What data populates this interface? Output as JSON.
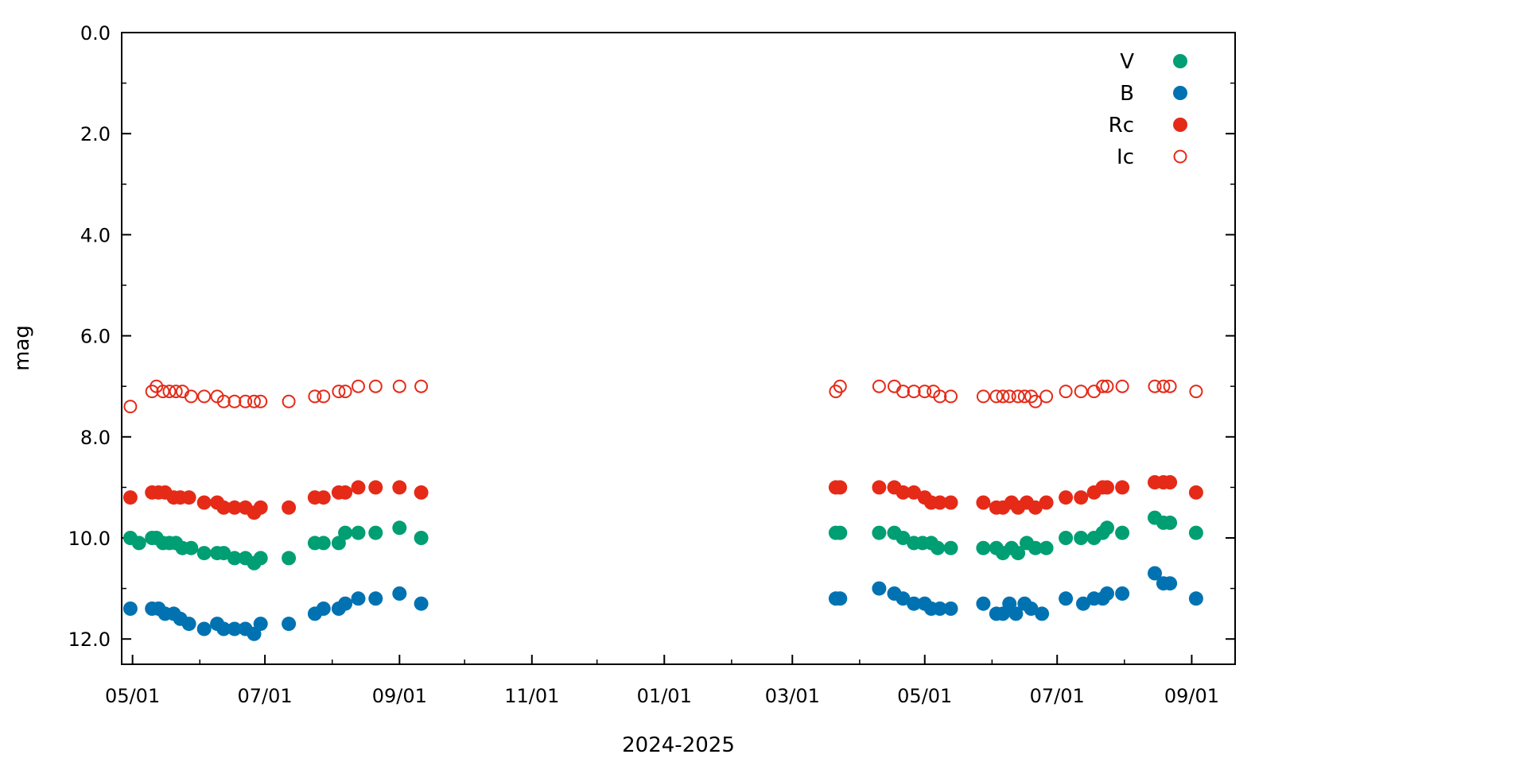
{
  "chart_data": {
    "type": "scatter",
    "xlabel": "2024-2025",
    "ylabel": "mag",
    "xlim": [
      "2024-04-26",
      "2025-09-21"
    ],
    "ylim": [
      12.5,
      0.0
    ],
    "y_inverted": true,
    "x_ticks": [
      {
        "date": "2024-05-01",
        "label": "05/01"
      },
      {
        "date": "2024-07-01",
        "label": "07/01"
      },
      {
        "date": "2024-09-01",
        "label": "09/01"
      },
      {
        "date": "2024-11-01",
        "label": "11/01"
      },
      {
        "date": "2025-01-01",
        "label": "01/01"
      },
      {
        "date": "2025-03-01",
        "label": "03/01"
      },
      {
        "date": "2025-05-01",
        "label": "05/01"
      },
      {
        "date": "2025-07-01",
        "label": "07/01"
      },
      {
        "date": "2025-09-01",
        "label": "09/01"
      }
    ],
    "y_ticks": [
      {
        "value": 0,
        "label": "0.0"
      },
      {
        "value": 2,
        "label": "2.0"
      },
      {
        "value": 4,
        "label": "4.0"
      },
      {
        "value": 6,
        "label": "6.0"
      },
      {
        "value": 8,
        "label": "8.0"
      },
      {
        "value": 10,
        "label": "10.0"
      },
      {
        "value": 12,
        "label": "12.0"
      }
    ],
    "legend_position": "top-right",
    "grid": false,
    "series": [
      {
        "name": "V",
        "color": "#009e73",
        "marker": "filled-circle",
        "points": [
          [
            "2024-04-30",
            10.0
          ],
          [
            "2024-05-04",
            10.1
          ],
          [
            "2024-05-10",
            10.0
          ],
          [
            "2024-05-12",
            10.0
          ],
          [
            "2024-05-15",
            10.1
          ],
          [
            "2024-05-18",
            10.1
          ],
          [
            "2024-05-21",
            10.1
          ],
          [
            "2024-05-24",
            10.2
          ],
          [
            "2024-05-28",
            10.2
          ],
          [
            "2024-06-03",
            10.3
          ],
          [
            "2024-06-09",
            10.3
          ],
          [
            "2024-06-12",
            10.3
          ],
          [
            "2024-06-17",
            10.4
          ],
          [
            "2024-06-22",
            10.4
          ],
          [
            "2024-06-26",
            10.5
          ],
          [
            "2024-06-29",
            10.4
          ],
          [
            "2024-07-12",
            10.4
          ],
          [
            "2024-07-24",
            10.1
          ],
          [
            "2024-07-28",
            10.1
          ],
          [
            "2024-08-04",
            10.1
          ],
          [
            "2024-08-07",
            9.9
          ],
          [
            "2024-08-13",
            9.9
          ],
          [
            "2024-08-21",
            9.9
          ],
          [
            "2024-09-01",
            9.8
          ],
          [
            "2024-09-11",
            10.0
          ],
          [
            "2025-03-21",
            9.9
          ],
          [
            "2025-03-23",
            9.9
          ],
          [
            "2025-04-10",
            9.9
          ],
          [
            "2025-04-17",
            9.9
          ],
          [
            "2025-04-21",
            10.0
          ],
          [
            "2025-04-26",
            10.1
          ],
          [
            "2025-04-30",
            10.1
          ],
          [
            "2025-05-04",
            10.1
          ],
          [
            "2025-05-07",
            10.2
          ],
          [
            "2025-05-13",
            10.2
          ],
          [
            "2025-05-28",
            10.2
          ],
          [
            "2025-06-03",
            10.2
          ],
          [
            "2025-06-06",
            10.3
          ],
          [
            "2025-06-10",
            10.2
          ],
          [
            "2025-06-13",
            10.3
          ],
          [
            "2025-06-17",
            10.1
          ],
          [
            "2025-06-21",
            10.2
          ],
          [
            "2025-06-26",
            10.2
          ],
          [
            "2025-07-05",
            10.0
          ],
          [
            "2025-07-12",
            10.0
          ],
          [
            "2025-07-18",
            10.0
          ],
          [
            "2025-07-22",
            9.9
          ],
          [
            "2025-07-24",
            9.8
          ],
          [
            "2025-07-31",
            9.9
          ],
          [
            "2025-08-15",
            9.6
          ],
          [
            "2025-08-19",
            9.7
          ],
          [
            "2025-08-22",
            9.7
          ],
          [
            "2025-09-03",
            9.9
          ]
        ]
      },
      {
        "name": "B",
        "color": "#0072b2",
        "marker": "filled-circle",
        "points": [
          [
            "2024-04-30",
            11.4
          ],
          [
            "2024-05-10",
            11.4
          ],
          [
            "2024-05-13",
            11.4
          ],
          [
            "2024-05-16",
            11.5
          ],
          [
            "2024-05-20",
            11.5
          ],
          [
            "2024-05-23",
            11.6
          ],
          [
            "2024-05-27",
            11.7
          ],
          [
            "2024-06-03",
            11.8
          ],
          [
            "2024-06-09",
            11.7
          ],
          [
            "2024-06-12",
            11.8
          ],
          [
            "2024-06-17",
            11.8
          ],
          [
            "2024-06-22",
            11.8
          ],
          [
            "2024-06-26",
            11.9
          ],
          [
            "2024-06-29",
            11.7
          ],
          [
            "2024-07-12",
            11.7
          ],
          [
            "2024-07-24",
            11.5
          ],
          [
            "2024-07-28",
            11.4
          ],
          [
            "2024-08-04",
            11.4
          ],
          [
            "2024-08-07",
            11.3
          ],
          [
            "2024-08-13",
            11.2
          ],
          [
            "2024-08-21",
            11.2
          ],
          [
            "2024-09-01",
            11.1
          ],
          [
            "2024-09-11",
            11.3
          ],
          [
            "2025-03-21",
            11.2
          ],
          [
            "2025-03-23",
            11.2
          ],
          [
            "2025-04-10",
            11.0
          ],
          [
            "2025-04-17",
            11.1
          ],
          [
            "2025-04-21",
            11.2
          ],
          [
            "2025-04-26",
            11.3
          ],
          [
            "2025-05-01",
            11.3
          ],
          [
            "2025-05-04",
            11.4
          ],
          [
            "2025-05-08",
            11.4
          ],
          [
            "2025-05-13",
            11.4
          ],
          [
            "2025-05-28",
            11.3
          ],
          [
            "2025-06-03",
            11.5
          ],
          [
            "2025-06-06",
            11.5
          ],
          [
            "2025-06-09",
            11.3
          ],
          [
            "2025-06-12",
            11.5
          ],
          [
            "2025-06-16",
            11.3
          ],
          [
            "2025-06-19",
            11.4
          ],
          [
            "2025-06-24",
            11.5
          ],
          [
            "2025-07-05",
            11.2
          ],
          [
            "2025-07-13",
            11.3
          ],
          [
            "2025-07-18",
            11.2
          ],
          [
            "2025-07-22",
            11.2
          ],
          [
            "2025-07-24",
            11.1
          ],
          [
            "2025-07-31",
            11.1
          ],
          [
            "2025-08-15",
            10.7
          ],
          [
            "2025-08-19",
            10.9
          ],
          [
            "2025-08-22",
            10.9
          ],
          [
            "2025-09-03",
            11.2
          ]
        ]
      },
      {
        "name": "Rc",
        "color": "#e52a18",
        "marker": "filled-circle",
        "points": [
          [
            "2024-04-30",
            9.2
          ],
          [
            "2024-05-10",
            9.1
          ],
          [
            "2024-05-13",
            9.1
          ],
          [
            "2024-05-16",
            9.1
          ],
          [
            "2024-05-20",
            9.2
          ],
          [
            "2024-05-23",
            9.2
          ],
          [
            "2024-05-27",
            9.2
          ],
          [
            "2024-06-03",
            9.3
          ],
          [
            "2024-06-09",
            9.3
          ],
          [
            "2024-06-12",
            9.4
          ],
          [
            "2024-06-17",
            9.4
          ],
          [
            "2024-06-22",
            9.4
          ],
          [
            "2024-06-26",
            9.5
          ],
          [
            "2024-06-29",
            9.4
          ],
          [
            "2024-07-12",
            9.4
          ],
          [
            "2024-07-24",
            9.2
          ],
          [
            "2024-07-28",
            9.2
          ],
          [
            "2024-08-04",
            9.1
          ],
          [
            "2024-08-07",
            9.1
          ],
          [
            "2024-08-13",
            9.0
          ],
          [
            "2024-08-21",
            9.0
          ],
          [
            "2024-09-01",
            9.0
          ],
          [
            "2024-09-11",
            9.1
          ],
          [
            "2025-03-21",
            9.0
          ],
          [
            "2025-03-23",
            9.0
          ],
          [
            "2025-04-10",
            9.0
          ],
          [
            "2025-04-17",
            9.0
          ],
          [
            "2025-04-21",
            9.1
          ],
          [
            "2025-04-26",
            9.1
          ],
          [
            "2025-05-01",
            9.2
          ],
          [
            "2025-05-04",
            9.3
          ],
          [
            "2025-05-08",
            9.3
          ],
          [
            "2025-05-13",
            9.3
          ],
          [
            "2025-05-28",
            9.3
          ],
          [
            "2025-06-03",
            9.4
          ],
          [
            "2025-06-06",
            9.4
          ],
          [
            "2025-06-10",
            9.3
          ],
          [
            "2025-06-13",
            9.4
          ],
          [
            "2025-06-17",
            9.3
          ],
          [
            "2025-06-21",
            9.4
          ],
          [
            "2025-06-26",
            9.3
          ],
          [
            "2025-07-05",
            9.2
          ],
          [
            "2025-07-12",
            9.2
          ],
          [
            "2025-07-18",
            9.1
          ],
          [
            "2025-07-22",
            9.0
          ],
          [
            "2025-07-24",
            9.0
          ],
          [
            "2025-07-31",
            9.0
          ],
          [
            "2025-08-15",
            8.9
          ],
          [
            "2025-08-19",
            8.9
          ],
          [
            "2025-08-22",
            8.9
          ],
          [
            "2025-09-03",
            9.1
          ]
        ]
      },
      {
        "name": "Ic",
        "color": "#e52a18",
        "marker": "open-circle",
        "points": [
          [
            "2024-04-30",
            7.4
          ],
          [
            "2024-05-10",
            7.1
          ],
          [
            "2024-05-12",
            7.0
          ],
          [
            "2024-05-15",
            7.1
          ],
          [
            "2024-05-18",
            7.1
          ],
          [
            "2024-05-21",
            7.1
          ],
          [
            "2024-05-24",
            7.1
          ],
          [
            "2024-05-28",
            7.2
          ],
          [
            "2024-06-03",
            7.2
          ],
          [
            "2024-06-09",
            7.2
          ],
          [
            "2024-06-12",
            7.3
          ],
          [
            "2024-06-17",
            7.3
          ],
          [
            "2024-06-22",
            7.3
          ],
          [
            "2024-06-26",
            7.3
          ],
          [
            "2024-06-29",
            7.3
          ],
          [
            "2024-07-12",
            7.3
          ],
          [
            "2024-07-24",
            7.2
          ],
          [
            "2024-07-28",
            7.2
          ],
          [
            "2024-08-04",
            7.1
          ],
          [
            "2024-08-07",
            7.1
          ],
          [
            "2024-08-13",
            7.0
          ],
          [
            "2024-08-21",
            7.0
          ],
          [
            "2024-09-01",
            7.0
          ],
          [
            "2024-09-11",
            7.0
          ],
          [
            "2025-03-21",
            7.1
          ],
          [
            "2025-03-23",
            7.0
          ],
          [
            "2025-04-10",
            7.0
          ],
          [
            "2025-04-17",
            7.0
          ],
          [
            "2025-04-21",
            7.1
          ],
          [
            "2025-04-26",
            7.1
          ],
          [
            "2025-05-01",
            7.1
          ],
          [
            "2025-05-05",
            7.1
          ],
          [
            "2025-05-08",
            7.2
          ],
          [
            "2025-05-13",
            7.2
          ],
          [
            "2025-05-28",
            7.2
          ],
          [
            "2025-06-03",
            7.2
          ],
          [
            "2025-06-06",
            7.2
          ],
          [
            "2025-06-09",
            7.2
          ],
          [
            "2025-06-13",
            7.2
          ],
          [
            "2025-06-16",
            7.2
          ],
          [
            "2025-06-19",
            7.2
          ],
          [
            "2025-06-21",
            7.3
          ],
          [
            "2025-06-26",
            7.2
          ],
          [
            "2025-07-05",
            7.1
          ],
          [
            "2025-07-12",
            7.1
          ],
          [
            "2025-07-18",
            7.1
          ],
          [
            "2025-07-22",
            7.0
          ],
          [
            "2025-07-24",
            7.0
          ],
          [
            "2025-07-31",
            7.0
          ],
          [
            "2025-08-15",
            7.0
          ],
          [
            "2025-08-19",
            7.0
          ],
          [
            "2025-08-22",
            7.0
          ],
          [
            "2025-09-03",
            7.1
          ]
        ]
      }
    ]
  }
}
